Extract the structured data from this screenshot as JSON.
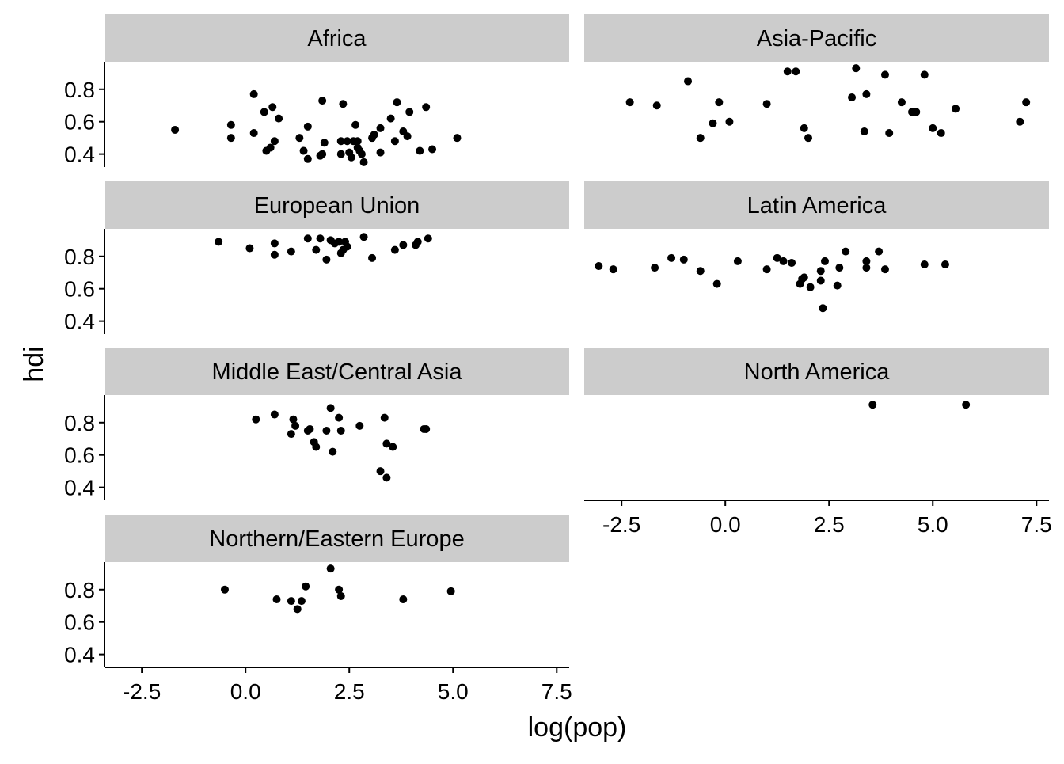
{
  "chart_data": {
    "type": "scatter",
    "xlabel": "log(pop)",
    "ylabel": "hdi",
    "xlim": [
      -3.4,
      7.8
    ],
    "ylim": [
      0.32,
      0.97
    ],
    "x_ticks": [
      -2.5,
      0.0,
      2.5,
      5.0,
      7.5
    ],
    "x_tick_labels": [
      "-2.5",
      "0.0",
      "2.5",
      "5.0",
      "7.5"
    ],
    "y_ticks": [
      0.4,
      0.6,
      0.8
    ],
    "y_tick_labels": [
      "0.4",
      "0.6",
      "0.8"
    ],
    "panels": [
      {
        "name": "Africa",
        "points": [
          [
            -1.7,
            0.55
          ],
          [
            -0.35,
            0.58
          ],
          [
            -0.35,
            0.5
          ],
          [
            0.2,
            0.77
          ],
          [
            0.2,
            0.53
          ],
          [
            0.45,
            0.66
          ],
          [
            0.5,
            0.42
          ],
          [
            0.6,
            0.44
          ],
          [
            0.65,
            0.69
          ],
          [
            0.7,
            0.48
          ],
          [
            0.8,
            0.62
          ],
          [
            1.3,
            0.5
          ],
          [
            1.4,
            0.42
          ],
          [
            1.5,
            0.57
          ],
          [
            1.5,
            0.37
          ],
          [
            1.8,
            0.39
          ],
          [
            1.85,
            0.4
          ],
          [
            1.85,
            0.73
          ],
          [
            1.9,
            0.47
          ],
          [
            2.3,
            0.4
          ],
          [
            2.3,
            0.48
          ],
          [
            2.35,
            0.71
          ],
          [
            2.45,
            0.48
          ],
          [
            2.5,
            0.41
          ],
          [
            2.55,
            0.38
          ],
          [
            2.6,
            0.48
          ],
          [
            2.65,
            0.58
          ],
          [
            2.7,
            0.48
          ],
          [
            2.7,
            0.44
          ],
          [
            2.75,
            0.42
          ],
          [
            2.8,
            0.4
          ],
          [
            2.85,
            0.35
          ],
          [
            3.05,
            0.5
          ],
          [
            3.1,
            0.52
          ],
          [
            3.25,
            0.41
          ],
          [
            3.25,
            0.56
          ],
          [
            3.5,
            0.62
          ],
          [
            3.6,
            0.48
          ],
          [
            3.65,
            0.72
          ],
          [
            3.8,
            0.54
          ],
          [
            3.9,
            0.51
          ],
          [
            3.95,
            0.66
          ],
          [
            4.2,
            0.42
          ],
          [
            4.35,
            0.69
          ],
          [
            4.5,
            0.43
          ],
          [
            5.1,
            0.5
          ]
        ]
      },
      {
        "name": "Asia-Pacific",
        "points": [
          [
            -2.3,
            0.72
          ],
          [
            -1.65,
            0.7
          ],
          [
            -0.9,
            0.85
          ],
          [
            -0.6,
            0.5
          ],
          [
            -0.3,
            0.59
          ],
          [
            -0.15,
            0.72
          ],
          [
            0.1,
            0.6
          ],
          [
            1.0,
            0.71
          ],
          [
            1.5,
            0.91
          ],
          [
            1.7,
            0.91
          ],
          [
            1.9,
            0.56
          ],
          [
            2.0,
            0.5
          ],
          [
            3.05,
            0.75
          ],
          [
            3.15,
            0.93
          ],
          [
            3.35,
            0.54
          ],
          [
            3.4,
            0.77
          ],
          [
            3.85,
            0.89
          ],
          [
            3.95,
            0.53
          ],
          [
            4.25,
            0.72
          ],
          [
            4.5,
            0.66
          ],
          [
            4.6,
            0.66
          ],
          [
            4.8,
            0.89
          ],
          [
            5.0,
            0.56
          ],
          [
            5.2,
            0.53
          ],
          [
            5.55,
            0.68
          ],
          [
            7.1,
            0.6
          ],
          [
            7.25,
            0.72
          ]
        ]
      },
      {
        "name": "European Union",
        "points": [
          [
            -0.65,
            0.89
          ],
          [
            0.1,
            0.85
          ],
          [
            0.7,
            0.81
          ],
          [
            0.7,
            0.88
          ],
          [
            1.1,
            0.83
          ],
          [
            1.5,
            0.91
          ],
          [
            1.7,
            0.84
          ],
          [
            1.8,
            0.91
          ],
          [
            1.95,
            0.78
          ],
          [
            2.05,
            0.9
          ],
          [
            2.15,
            0.88
          ],
          [
            2.25,
            0.89
          ],
          [
            2.3,
            0.82
          ],
          [
            2.35,
            0.84
          ],
          [
            2.4,
            0.89
          ],
          [
            2.45,
            0.86
          ],
          [
            2.85,
            0.92
          ],
          [
            3.05,
            0.79
          ],
          [
            3.6,
            0.84
          ],
          [
            3.8,
            0.87
          ],
          [
            4.1,
            0.87
          ],
          [
            4.15,
            0.89
          ],
          [
            4.4,
            0.91
          ]
        ]
      },
      {
        "name": "Latin America",
        "points": [
          [
            -3.05,
            0.74
          ],
          [
            -2.7,
            0.72
          ],
          [
            -1.7,
            0.73
          ],
          [
            -1.3,
            0.79
          ],
          [
            -1.0,
            0.78
          ],
          [
            -0.6,
            0.71
          ],
          [
            -0.2,
            0.63
          ],
          [
            0.3,
            0.77
          ],
          [
            1.0,
            0.72
          ],
          [
            1.25,
            0.79
          ],
          [
            1.4,
            0.77
          ],
          [
            1.6,
            0.76
          ],
          [
            1.8,
            0.63
          ],
          [
            1.85,
            0.66
          ],
          [
            1.9,
            0.67
          ],
          [
            2.05,
            0.61
          ],
          [
            2.3,
            0.71
          ],
          [
            2.3,
            0.65
          ],
          [
            2.4,
            0.77
          ],
          [
            2.35,
            0.48
          ],
          [
            2.7,
            0.62
          ],
          [
            2.75,
            0.73
          ],
          [
            2.9,
            0.83
          ],
          [
            3.4,
            0.77
          ],
          [
            3.4,
            0.73
          ],
          [
            3.7,
            0.83
          ],
          [
            3.85,
            0.72
          ],
          [
            4.8,
            0.75
          ],
          [
            5.3,
            0.75
          ]
        ]
      },
      {
        "name": "Middle East/Central Asia",
        "points": [
          [
            0.25,
            0.82
          ],
          [
            0.7,
            0.85
          ],
          [
            1.1,
            0.73
          ],
          [
            1.15,
            0.82
          ],
          [
            1.2,
            0.78
          ],
          [
            1.5,
            0.75
          ],
          [
            1.55,
            0.76
          ],
          [
            1.65,
            0.68
          ],
          [
            1.7,
            0.65
          ],
          [
            1.95,
            0.75
          ],
          [
            2.05,
            0.89
          ],
          [
            2.1,
            0.62
          ],
          [
            2.25,
            0.83
          ],
          [
            2.3,
            0.75
          ],
          [
            2.75,
            0.78
          ],
          [
            3.25,
            0.5
          ],
          [
            3.35,
            0.83
          ],
          [
            3.4,
            0.67
          ],
          [
            3.4,
            0.46
          ],
          [
            3.55,
            0.65
          ],
          [
            4.3,
            0.76
          ],
          [
            4.35,
            0.76
          ]
        ]
      },
      {
        "name": "North America",
        "points": [
          [
            3.55,
            0.91
          ],
          [
            5.8,
            0.91
          ]
        ]
      },
      {
        "name": "Northern/Eastern Europe",
        "points": [
          [
            -0.5,
            0.8
          ],
          [
            0.75,
            0.74
          ],
          [
            1.1,
            0.73
          ],
          [
            1.25,
            0.68
          ],
          [
            1.35,
            0.73
          ],
          [
            1.45,
            0.82
          ],
          [
            2.05,
            0.93
          ],
          [
            2.25,
            0.8
          ],
          [
            2.3,
            0.76
          ],
          [
            3.8,
            0.74
          ],
          [
            4.95,
            0.79
          ]
        ]
      }
    ]
  }
}
